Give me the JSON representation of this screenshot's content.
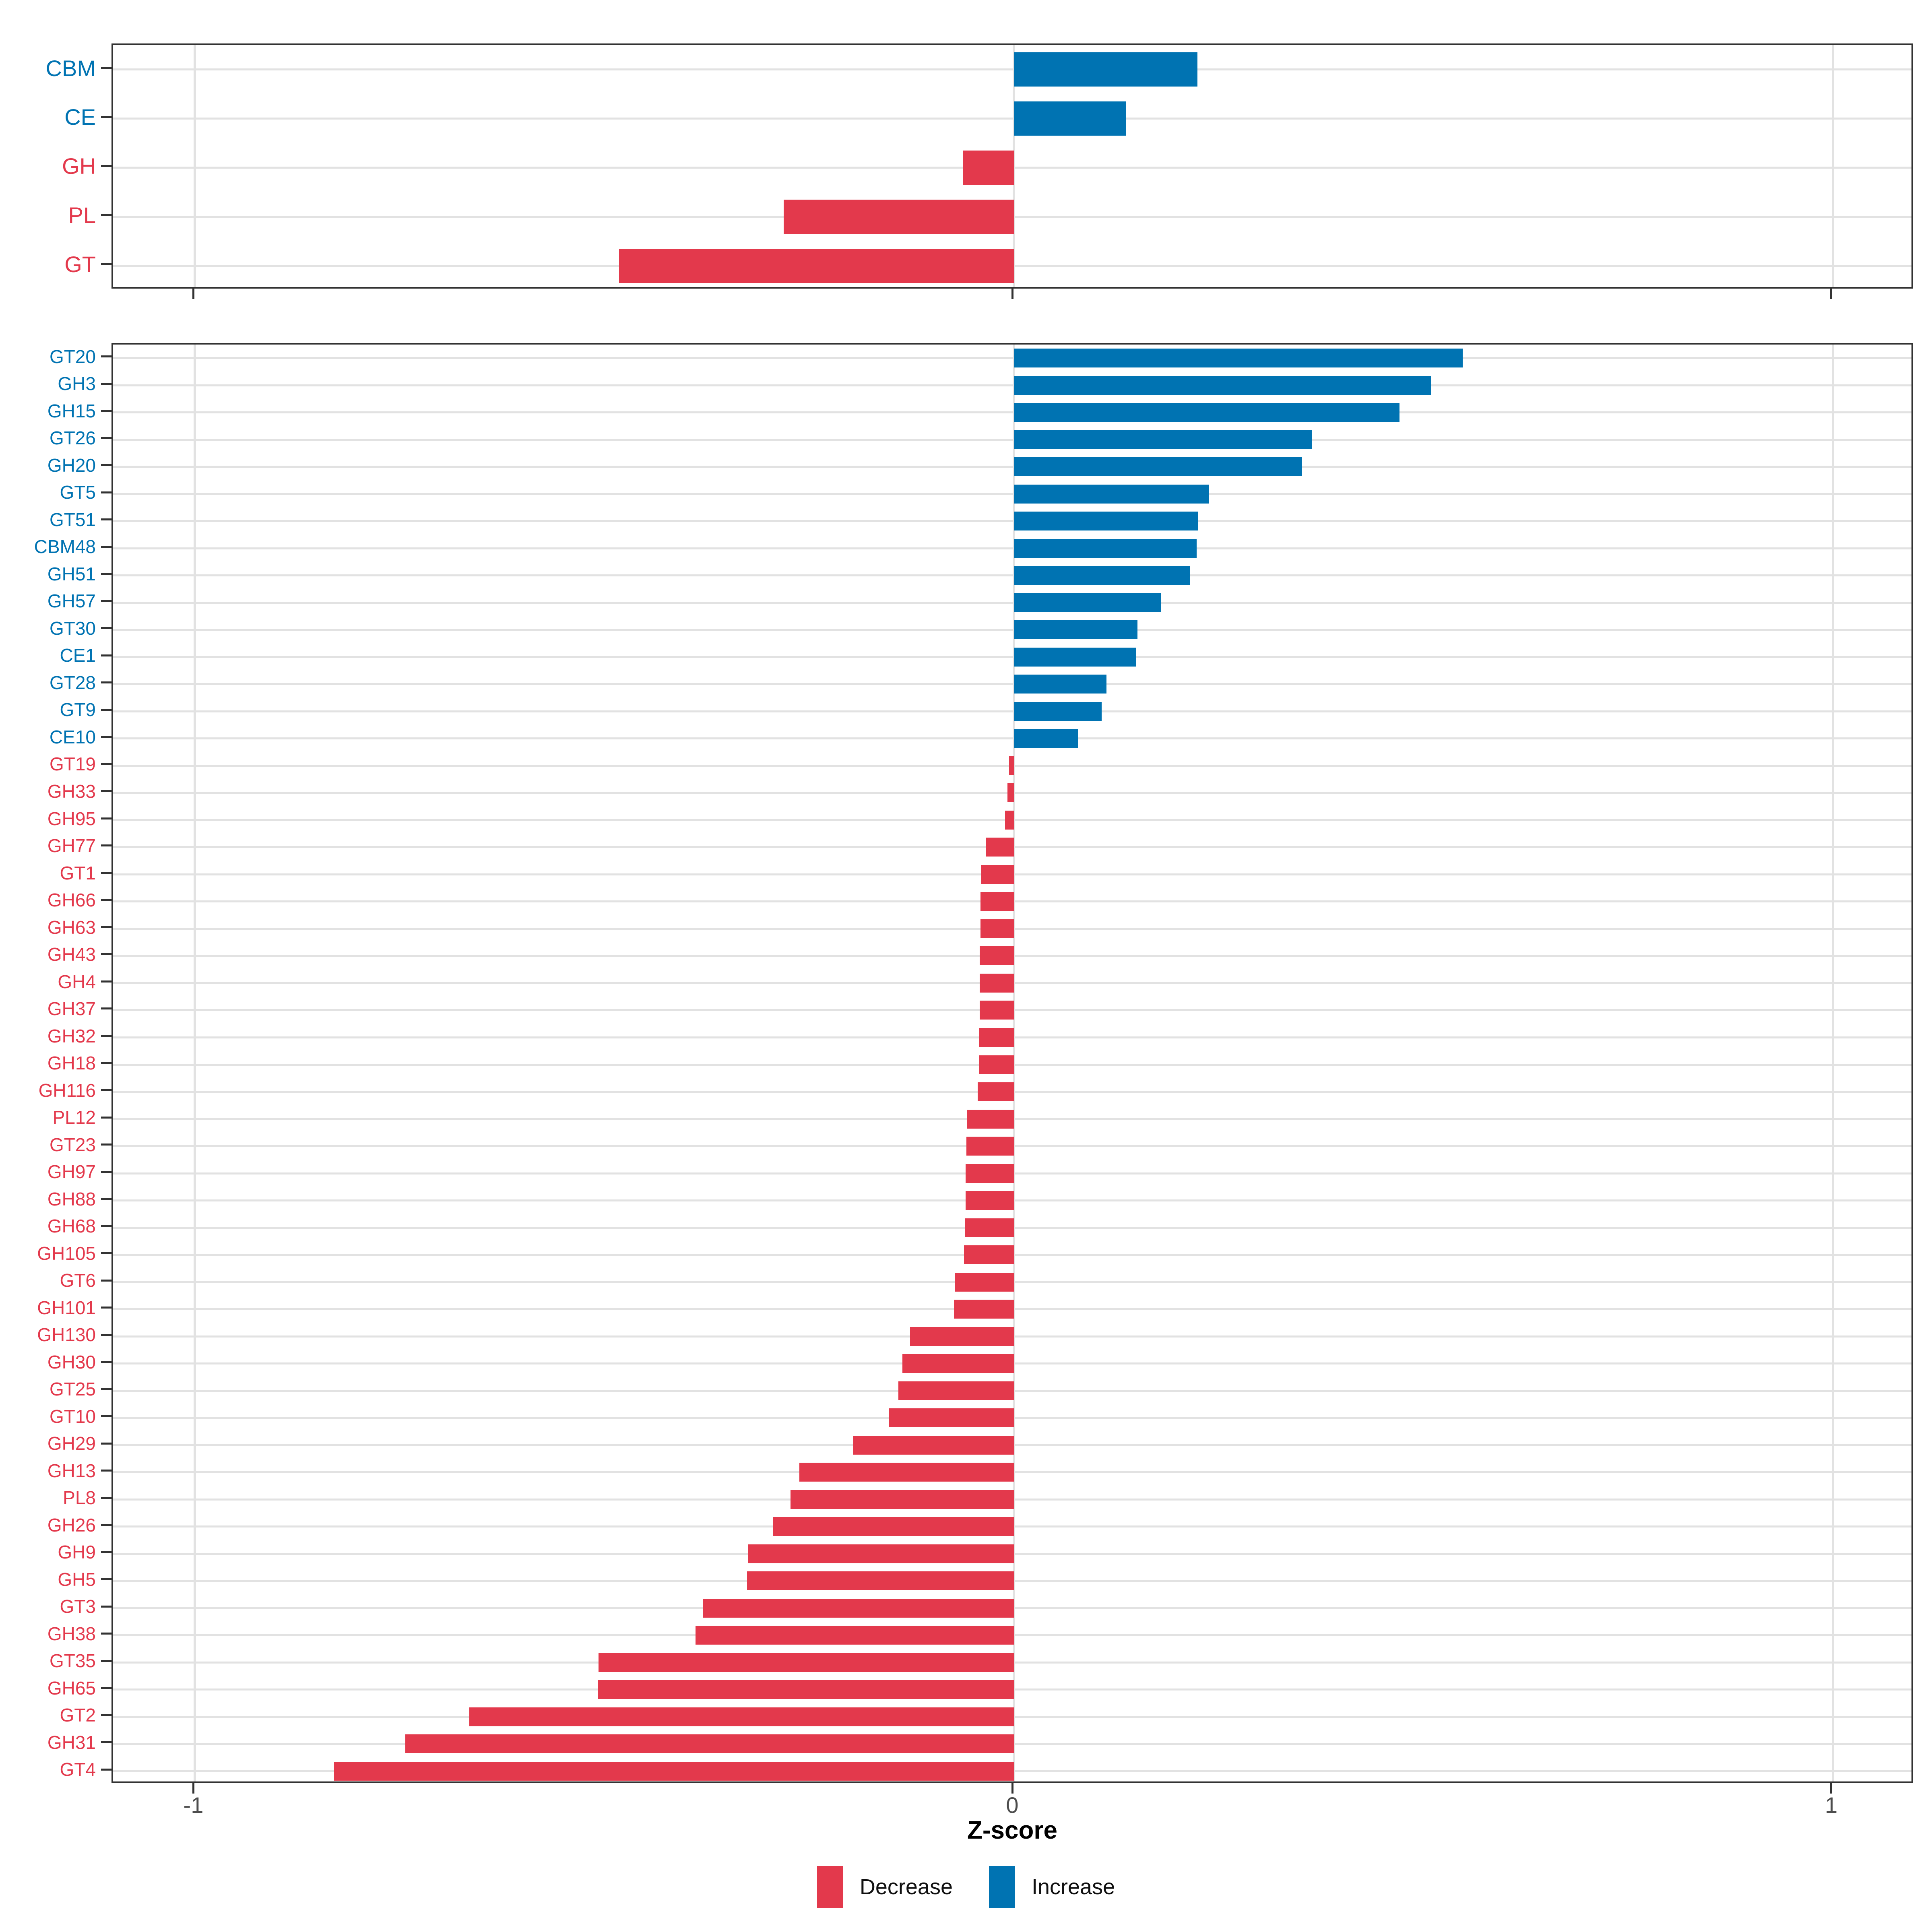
{
  "colors": {
    "increase": "#0073B2",
    "decrease": "#E3394C",
    "grid": "#E2E2E2",
    "axis_text": "#4D4D4D",
    "tick": "#333333",
    "panel_border": "#333333",
    "background": "#FFFFFF"
  },
  "axis": {
    "title": "Z-score",
    "ticks": [
      -1,
      0,
      1
    ],
    "tick_labels": [
      "-1",
      "0",
      "1"
    ],
    "xlim": [
      -1.1,
      1.1
    ]
  },
  "legend": {
    "items": [
      {
        "label": "Decrease",
        "color_key": "decrease"
      },
      {
        "label": "Increase",
        "color_key": "increase"
      }
    ]
  },
  "chart_data": [
    {
      "type": "bar",
      "orientation": "horizontal",
      "panel": "cazyme-classes",
      "xlabel": "Z-score",
      "xlim": [
        -1.1,
        1.1
      ],
      "grid": "on",
      "legend_position": "bottom",
      "categories": [
        "CBM",
        "CE",
        "GH",
        "PL",
        "GT"
      ],
      "values": [
        0.224,
        0.137,
        -0.062,
        -0.281,
        -0.482
      ],
      "directions": [
        "Increase",
        "Increase",
        "Decrease",
        "Decrease",
        "Decrease"
      ]
    },
    {
      "type": "bar",
      "orientation": "horizontal",
      "panel": "cazyme-families",
      "xlabel": "Z-score",
      "xlim": [
        -1.1,
        1.1
      ],
      "grid": "on",
      "legend_position": "bottom",
      "categories": [
        "GT20",
        "GH3",
        "GH15",
        "GT26",
        "GH20",
        "GT5",
        "GT51",
        "CBM48",
        "GH51",
        "GH57",
        "GT30",
        "CE1",
        "GT28",
        "GT9",
        "CE10",
        "GT19",
        "GH33",
        "GH95",
        "GH77",
        "GT1",
        "GH66",
        "GH63",
        "GH43",
        "GH4",
        "GH37",
        "GH32",
        "GH18",
        "GH116",
        "PL12",
        "GT23",
        "GH97",
        "GH88",
        "GH68",
        "GH105",
        "GT6",
        "GH101",
        "GH130",
        "GH30",
        "GT25",
        "GT10",
        "GH29",
        "GH13",
        "PL8",
        "GH26",
        "GH9",
        "GH5",
        "GT3",
        "GH38",
        "GT35",
        "GH65",
        "GT2",
        "GH31",
        "GT4"
      ],
      "values": [
        0.548,
        0.509,
        0.471,
        0.364,
        0.352,
        0.238,
        0.225,
        0.223,
        0.215,
        0.18,
        0.151,
        0.149,
        0.113,
        0.107,
        0.078,
        -0.006,
        -0.008,
        -0.011,
        -0.034,
        -0.04,
        -0.041,
        -0.041,
        -0.042,
        -0.042,
        -0.042,
        -0.043,
        -0.043,
        -0.044,
        -0.057,
        -0.058,
        -0.059,
        -0.059,
        -0.06,
        -0.061,
        -0.072,
        -0.073,
        -0.127,
        -0.136,
        -0.141,
        -0.153,
        -0.196,
        -0.262,
        -0.273,
        -0.294,
        -0.325,
        -0.326,
        -0.38,
        -0.389,
        -0.507,
        -0.508,
        -0.665,
        -0.743,
        -0.83
      ],
      "directions": [
        "Increase",
        "Increase",
        "Increase",
        "Increase",
        "Increase",
        "Increase",
        "Increase",
        "Increase",
        "Increase",
        "Increase",
        "Increase",
        "Increase",
        "Increase",
        "Increase",
        "Increase",
        "Decrease",
        "Decrease",
        "Decrease",
        "Decrease",
        "Decrease",
        "Decrease",
        "Decrease",
        "Decrease",
        "Decrease",
        "Decrease",
        "Decrease",
        "Decrease",
        "Decrease",
        "Decrease",
        "Decrease",
        "Decrease",
        "Decrease",
        "Decrease",
        "Decrease",
        "Decrease",
        "Decrease",
        "Decrease",
        "Decrease",
        "Decrease",
        "Decrease",
        "Decrease",
        "Decrease",
        "Decrease",
        "Decrease",
        "Decrease",
        "Decrease",
        "Decrease",
        "Decrease",
        "Decrease",
        "Decrease",
        "Decrease",
        "Decrease",
        "Decrease"
      ]
    }
  ]
}
